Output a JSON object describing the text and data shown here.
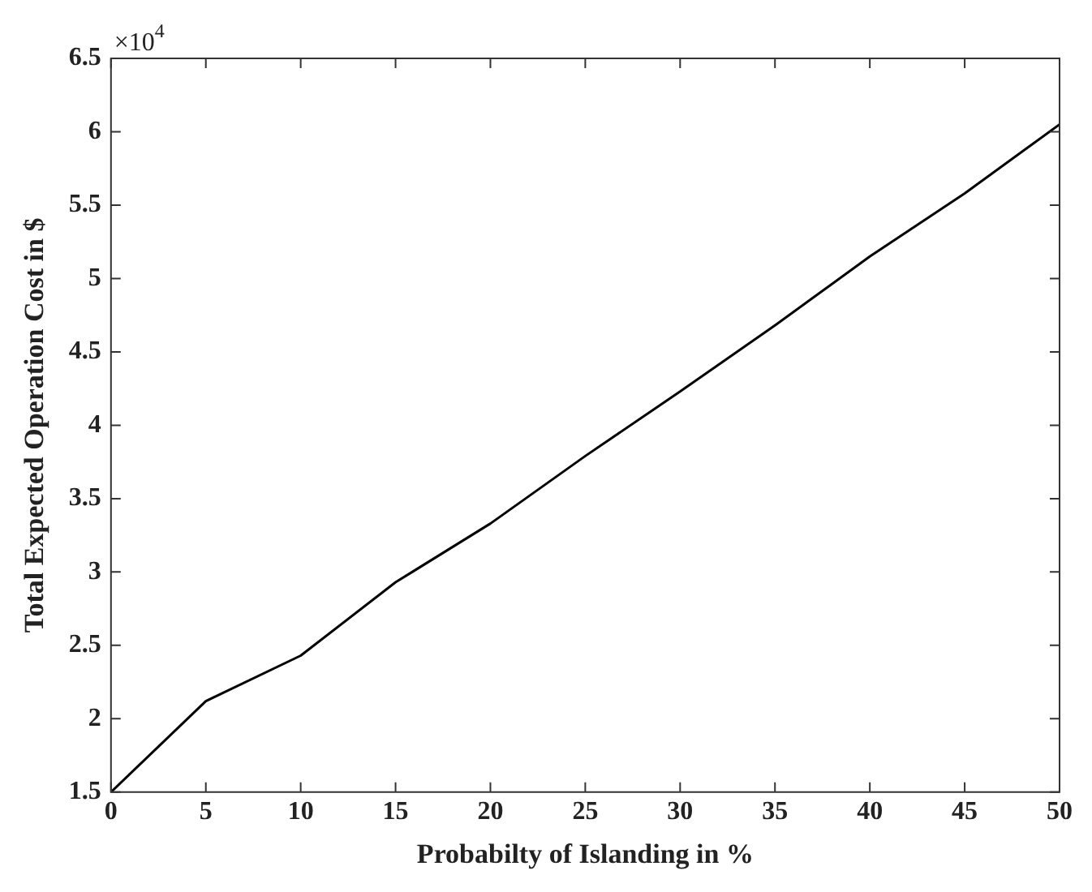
{
  "chart_data": {
    "type": "line",
    "xlabel": "Probabilty of Islanding in %",
    "ylabel": "Total Expected Operation Cost in $",
    "x": [
      0,
      5,
      10,
      15,
      20,
      25,
      30,
      35,
      40,
      45,
      50
    ],
    "series": [
      {
        "color": "#000000",
        "values": [
          1.5,
          2.12,
          2.43,
          2.93,
          3.33,
          3.79,
          4.23,
          4.68,
          5.15,
          5.58,
          6.05
        ]
      }
    ],
    "xlim": [
      0,
      50
    ],
    "xticks": [
      0,
      5,
      10,
      15,
      20,
      25,
      30,
      35,
      40,
      45,
      50
    ],
    "ylim": [
      1.5,
      6.5
    ],
    "yticks": [
      1.5,
      2,
      2.5,
      3,
      3.5,
      4,
      4.5,
      5,
      5.5,
      6,
      6.5
    ],
    "annotations": [
      "×10$^{4}$"
    ],
    "grid": false,
    "legend": false,
    "marker": "none",
    "line_style": "solid"
  }
}
